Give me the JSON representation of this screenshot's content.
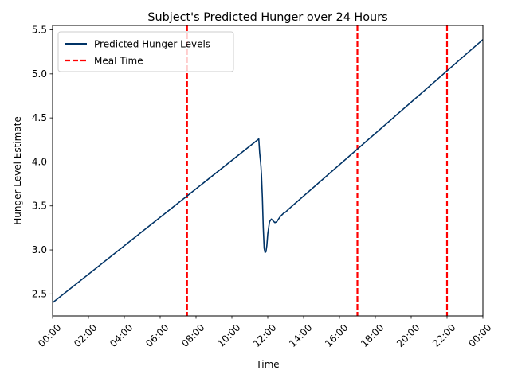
{
  "chart_data": {
    "type": "line",
    "title": "Subject's Predicted Hunger over 24 Hours",
    "xlabel": "Time",
    "ylabel": "Hunger Level Estimate",
    "x_unit": "hours",
    "xlim": [
      0,
      24
    ],
    "ylim": [
      2.25,
      5.55
    ],
    "x_ticks": [
      0,
      2,
      4,
      6,
      8,
      10,
      12,
      14,
      16,
      18,
      20,
      22,
      24
    ],
    "x_tick_labels": [
      "00:00",
      "02:00",
      "04:00",
      "06:00",
      "08:00",
      "10:00",
      "12:00",
      "14:00",
      "16:00",
      "18:00",
      "20:00",
      "22:00",
      "00:00"
    ],
    "y_ticks": [
      2.5,
      3.0,
      3.5,
      4.0,
      4.5,
      5.0,
      5.5
    ],
    "y_tick_labels": [
      "2.5",
      "3.0",
      "3.5",
      "4.0",
      "4.5",
      "5.0",
      "5.5"
    ],
    "grid": false,
    "legend_position": "upper-left",
    "series": [
      {
        "name": "Predicted Hunger Levels",
        "color": "#003366",
        "style": "solid",
        "x": [
          0,
          11.5,
          11.55,
          11.6,
          11.62,
          11.65,
          11.7,
          11.75,
          11.8,
          11.85,
          11.9,
          11.95,
          12.0,
          12.1,
          12.2,
          12.3,
          12.4,
          12.5,
          12.6,
          12.7,
          12.8,
          12.9,
          13.0,
          13.2,
          24
        ],
        "y": [
          2.4,
          4.26,
          4.1,
          4.0,
          3.95,
          3.85,
          3.6,
          3.25,
          3.02,
          2.97,
          2.98,
          3.05,
          3.18,
          3.32,
          3.35,
          3.33,
          3.31,
          3.32,
          3.35,
          3.38,
          3.4,
          3.42,
          3.43,
          3.47,
          5.39
        ]
      }
    ],
    "vlines": {
      "name": "Meal Time",
      "color": "#ff0000",
      "style": "dashed",
      "x": [
        7.5,
        17,
        22
      ]
    }
  }
}
